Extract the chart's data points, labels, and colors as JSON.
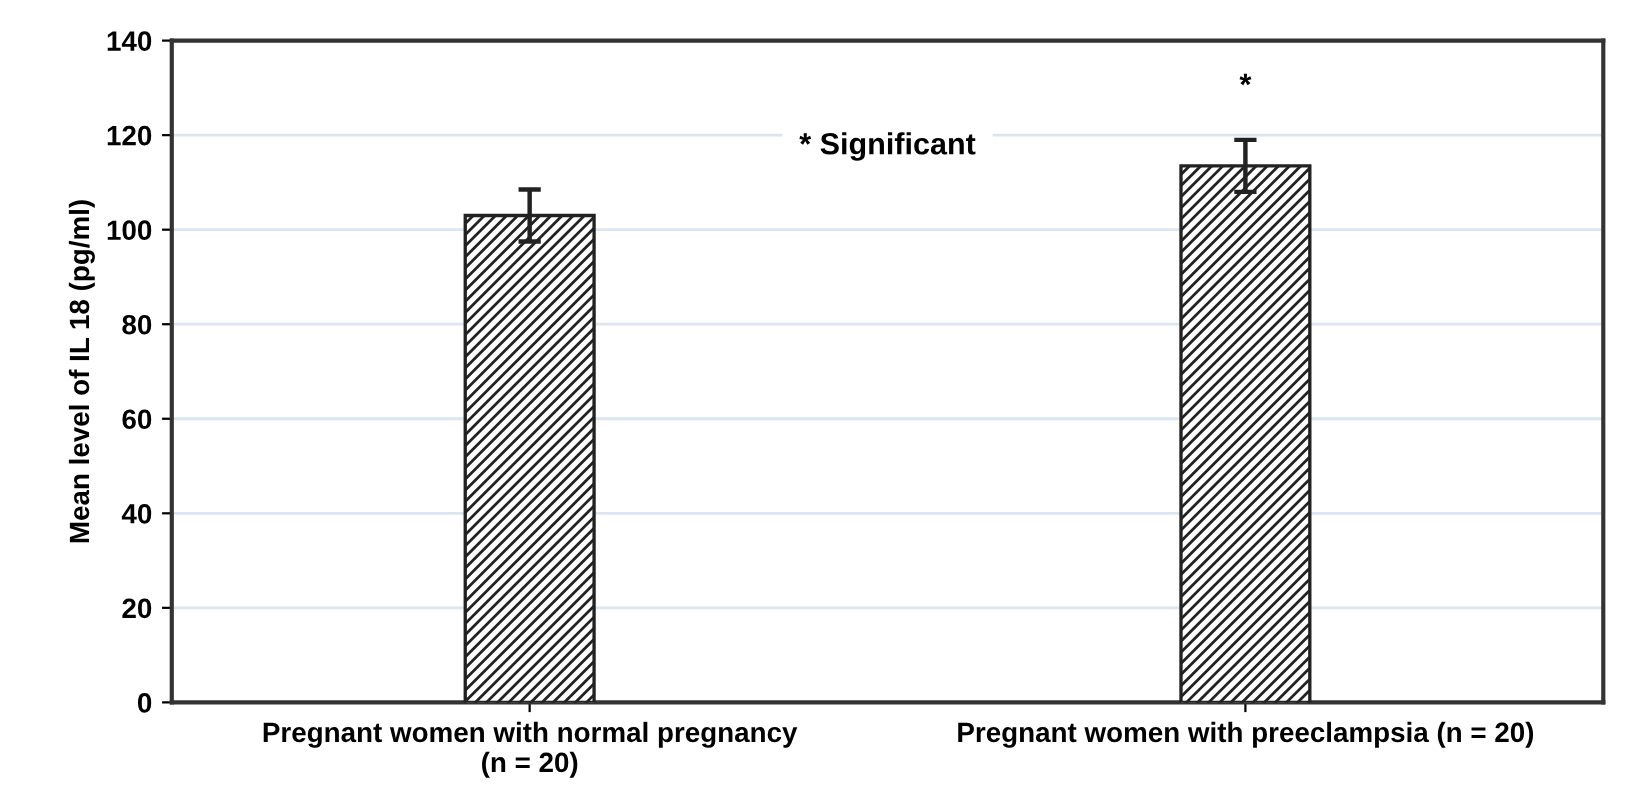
{
  "chart_data": {
    "type": "bar",
    "ylabel": "Mean level of IL 18 (pg/ml)",
    "categories": [
      "Pregnant women with normal pregnancy\n(n = 20)",
      "Pregnant women with preeclampsia (n = 20)"
    ],
    "values": [
      103,
      113.5
    ],
    "errors": [
      5.5,
      5.5
    ],
    "color": "#222222",
    "ylim": [
      0,
      140
    ],
    "yticks": [
      0,
      20,
      40,
      60,
      80,
      100,
      120,
      140
    ],
    "grid": "y",
    "annotations": [
      "* Significant",
      "*"
    ]
  }
}
